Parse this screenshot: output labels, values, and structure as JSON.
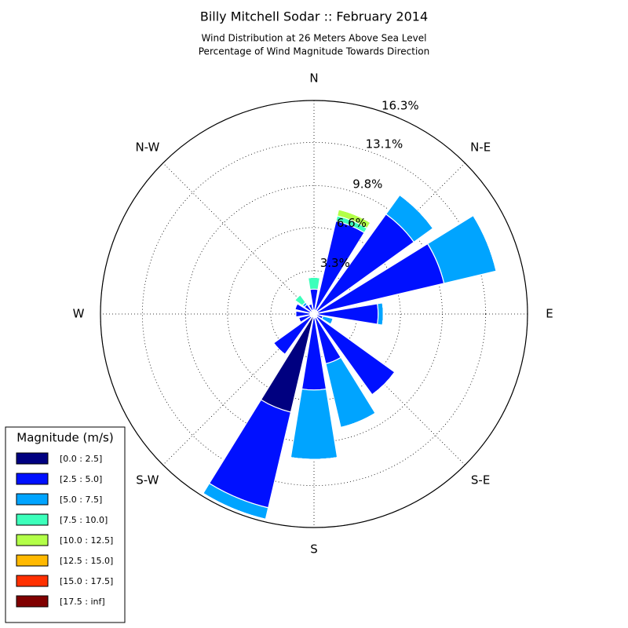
{
  "chart_data": {
    "type": "windrose",
    "title": "Billy Mitchell Sodar :: February 2014",
    "subtitle": [
      "Wind Distribution at 26 Meters Above Sea Level",
      "Percentage of Wind Magnitude Towards Direction"
    ],
    "categories": [
      "N",
      null,
      "N-E",
      null,
      "E",
      null,
      "S-E",
      null,
      "S",
      null,
      "S-W",
      null,
      "W",
      null,
      "N-W",
      null
    ],
    "rlim": [
      0,
      16.3
    ],
    "rticks": [
      {
        "value": 3.3,
        "label": "3.3%"
      },
      {
        "value": 6.6,
        "label": "6.6%"
      },
      {
        "value": 9.8,
        "label": "9.8%"
      },
      {
        "value": 13.1,
        "label": "13.1%"
      },
      {
        "value": 16.3,
        "label": "16.3%"
      }
    ],
    "grid": true,
    "legend_title": "Magnitude (m/s)",
    "legend": "lower left",
    "series": [
      {
        "name": "[0.0 : 2.5]",
        "color": "#000080",
        "values": [
          0.3,
          0.3,
          0.3,
          0.3,
          0.3,
          0.2,
          0.3,
          0.3,
          0.3,
          7.7,
          0.3,
          0.3,
          0.3,
          0.3,
          0.2,
          0.3
        ]
      },
      {
        "name": "[2.5 : 5.0]",
        "color": "#0010ff",
        "values": [
          1.6,
          7.0,
          9.1,
          9.9,
          4.6,
          0.5,
          7.3,
          3.6,
          5.5,
          7.5,
          3.5,
          0.9,
          1.1,
          1.2,
          0.7,
          0.5
        ]
      },
      {
        "name": "[5.0 : 7.5]",
        "color": "#00a4ff",
        "values": [
          0,
          0,
          1.8,
          4.1,
          0.4,
          0.8,
          0,
          5.0,
          5.3,
          0.9,
          0,
          0,
          0,
          0,
          0.2,
          0
        ]
      },
      {
        "name": "[7.5 : 10.0]",
        "color": "#3cffbb",
        "values": [
          0.9,
          0.4,
          0,
          0,
          0,
          0,
          0,
          0,
          0,
          0,
          0,
          0,
          0,
          0,
          0.7,
          0
        ]
      },
      {
        "name": "[10.0 : 12.5]",
        "color": "#b3ff48",
        "values": [
          0,
          0.5,
          0,
          0,
          0,
          0,
          0,
          0,
          0,
          0,
          0,
          0,
          0,
          0,
          0,
          0
        ]
      },
      {
        "name": "[12.5 : 15.0]",
        "color": "#ffb900",
        "values": [
          0,
          0,
          0,
          0,
          0,
          0,
          0,
          0,
          0,
          0,
          0,
          0,
          0,
          0,
          0,
          0
        ]
      },
      {
        "name": "[15.0 : 17.5]",
        "color": "#ff3000",
        "values": [
          0,
          0,
          0,
          0,
          0,
          0,
          0,
          0,
          0,
          0,
          0,
          0,
          0,
          0,
          0,
          0
        ]
      },
      {
        "name": "[17.5 : inf]",
        "color": "#800000",
        "values": [
          0,
          0,
          0,
          0,
          0,
          0,
          0,
          0,
          0,
          0,
          0,
          0,
          0,
          0,
          0,
          0
        ]
      }
    ]
  }
}
